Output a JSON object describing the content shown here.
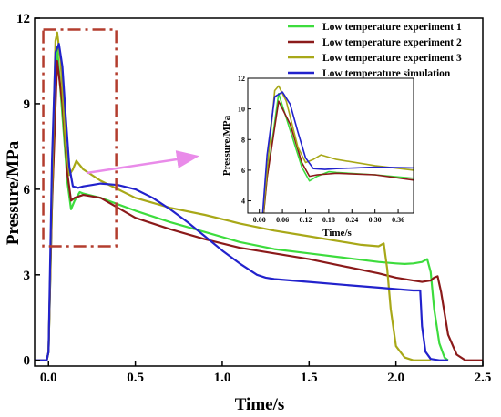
{
  "chart_data": {
    "type": "line",
    "xlabel": "Time/s",
    "ylabel": "Pressure/MPa",
    "xlim": [
      -0.08,
      2.5
    ],
    "ylim": [
      -0.2,
      12
    ],
    "x_ticks": [
      "0.0",
      "0.5",
      "1.0",
      "1.5",
      "2.0",
      "2.5"
    ],
    "y_ticks": [
      "0",
      "3",
      "6",
      "9",
      "12"
    ],
    "legend_position": "top-right",
    "highlight_box": {
      "x": [
        -0.03,
        0.39
      ],
      "y": [
        4.0,
        11.6
      ]
    },
    "series": [
      {
        "name": "Low temperature experiment 1",
        "color": "#3ddc3d",
        "x": [
          -0.08,
          -0.01,
          0.0,
          0.02,
          0.05,
          0.08,
          0.11,
          0.13,
          0.15,
          0.18,
          0.2,
          0.3,
          0.5,
          0.7,
          0.9,
          1.1,
          1.3,
          1.5,
          1.7,
          1.9,
          2.0,
          2.05,
          2.1,
          2.15,
          2.18,
          2.2,
          2.22,
          2.25,
          2.28,
          2.3
        ],
        "y": [
          0.0,
          0.0,
          0.3,
          5.5,
          11.0,
          8.6,
          6.2,
          5.3,
          5.6,
          5.9,
          5.85,
          5.7,
          5.25,
          4.85,
          4.5,
          4.15,
          3.9,
          3.75,
          3.6,
          3.45,
          3.4,
          3.38,
          3.4,
          3.45,
          3.55,
          3.1,
          1.8,
          0.6,
          0.1,
          0.0
        ]
      },
      {
        "name": "Low temperature experiment 2",
        "color": "#8b1a1a",
        "x": [
          -0.08,
          -0.01,
          0.0,
          0.02,
          0.05,
          0.08,
          0.11,
          0.13,
          0.15,
          0.2,
          0.3,
          0.5,
          0.7,
          0.9,
          1.1,
          1.3,
          1.5,
          1.7,
          1.9,
          2.0,
          2.1,
          2.15,
          2.2,
          2.22,
          2.24,
          2.26,
          2.3,
          2.35,
          2.4,
          2.5
        ],
        "y": [
          0.0,
          0.0,
          0.3,
          5.5,
          10.5,
          9.0,
          6.5,
          5.6,
          5.7,
          5.8,
          5.7,
          5.0,
          4.6,
          4.25,
          3.95,
          3.75,
          3.55,
          3.3,
          3.05,
          2.9,
          2.8,
          2.75,
          2.8,
          2.9,
          2.95,
          2.4,
          0.9,
          0.2,
          0.0,
          0.0
        ]
      },
      {
        "name": "Low temperature experiment 3",
        "color": "#a8a818",
        "x": [
          -0.08,
          -0.01,
          0.0,
          0.02,
          0.04,
          0.05,
          0.07,
          0.1,
          0.12,
          0.14,
          0.16,
          0.2,
          0.3,
          0.5,
          0.7,
          0.9,
          1.1,
          1.3,
          1.5,
          1.7,
          1.8,
          1.9,
          1.93,
          1.95,
          1.97,
          2.0,
          2.05,
          2.1,
          2.2
        ],
        "y": [
          0.0,
          0.0,
          0.3,
          6.0,
          11.2,
          11.5,
          10.5,
          7.5,
          6.5,
          6.7,
          7.0,
          6.7,
          6.3,
          5.7,
          5.35,
          5.1,
          4.8,
          4.55,
          4.35,
          4.15,
          4.05,
          4.0,
          4.1,
          3.2,
          1.8,
          0.5,
          0.1,
          0.0,
          0.0
        ]
      },
      {
        "name": "Low temperature simulation",
        "color": "#2222cc",
        "x": [
          -0.08,
          -0.01,
          0.0,
          0.02,
          0.04,
          0.06,
          0.08,
          0.1,
          0.12,
          0.14,
          0.17,
          0.2,
          0.25,
          0.3,
          0.4,
          0.5,
          0.6,
          0.7,
          0.8,
          0.9,
          1.0,
          1.1,
          1.2,
          1.25,
          1.3,
          1.5,
          1.7,
          1.9,
          2.0,
          2.1,
          2.14,
          2.15,
          2.17,
          2.2,
          2.25,
          2.3
        ],
        "y": [
          0.0,
          0.0,
          0.3,
          7.0,
          10.8,
          11.1,
          10.3,
          8.5,
          6.8,
          6.1,
          6.05,
          6.1,
          6.15,
          6.2,
          6.15,
          6.0,
          5.7,
          5.3,
          4.85,
          4.35,
          3.85,
          3.4,
          3.0,
          2.9,
          2.85,
          2.75,
          2.65,
          2.55,
          2.5,
          2.45,
          2.45,
          1.2,
          0.3,
          0.05,
          0.0,
          0.0
        ]
      }
    ],
    "inset": {
      "xlabel": "Time/s",
      "ylabel": "Pressure/MPa",
      "xlim": [
        -0.03,
        0.4
      ],
      "ylim": [
        3.2,
        12
      ],
      "x_ticks": [
        "0.00",
        "0.06",
        "0.12",
        "0.18",
        "0.24",
        "0.30",
        "0.36"
      ],
      "y_ticks": [
        "4",
        "6",
        "8",
        "10",
        "12"
      ]
    }
  }
}
